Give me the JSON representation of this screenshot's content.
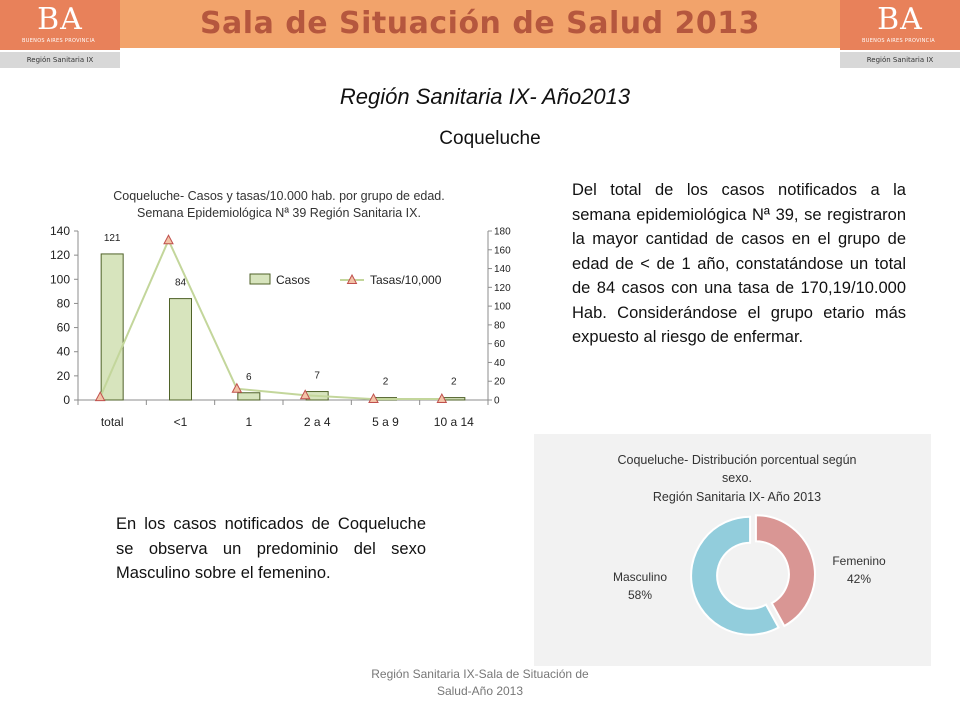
{
  "header": {
    "title": "Sala de Situación de Salud 2013",
    "logo_text": "BA",
    "logo_subtext": "BUENOS AIRES PROVINCIA",
    "logo_region": "Región Sanitaria IX"
  },
  "subtitle": "Región Sanitaria IX- Año2013",
  "topic": "Coqueluche",
  "paragraph1": "Del total de los casos notificados a la semana epidemiológica Nª 39, se registraron la mayor cantidad de casos en el grupo de edad de < de 1 año, constatándose un total de 84 casos con una tasa de 170,19/10.000 Hab. Considerándose el grupo etario más expuesto al riesgo de enfermar.",
  "paragraph2": "En los casos notificados de Coqueluche se observa un predominio del sexo Masculino sobre el femenino.",
  "footer": {
    "line1": "Región Sanitaria IX-Sala de Situación de",
    "line2": "Salud-Año 2013"
  },
  "colors": {
    "header_band": "#f2a36b",
    "logo_bg": "#e8815a",
    "title_text": "#b5573e",
    "bar_fill": "#d7e4bd",
    "bar_stroke": "#4f6228",
    "line_color": "#c3d69b",
    "marker_fill": "#f2c3a7",
    "marker_stroke": "#c0504d",
    "pie_femenino": "#d99694",
    "pie_masculino": "#92cddc"
  },
  "chart_data": [
    {
      "type": "bar",
      "title_lines": [
        "Coqueluche- Casos y tasas/10.000 hab. por grupo de edad.",
        "Semana Epidemiológica Nª 39 Región Sanitaria IX."
      ],
      "categories": [
        "total",
        "<1",
        "1",
        "2 a 4",
        "5 a 9",
        "10 a 14"
      ],
      "series": [
        {
          "name": "Casos",
          "type": "bar",
          "axis": "left",
          "values": [
            121,
            84,
            6,
            7,
            2,
            2
          ],
          "labels": [
            "121",
            "84",
            "6",
            "7",
            "2",
            "2"
          ]
        },
        {
          "name": "Tasas/10,000",
          "type": "line",
          "axis": "right",
          "values": [
            3,
            170.19,
            12,
            5,
            1,
            1
          ]
        }
      ],
      "y_left": {
        "min": 0,
        "max": 140,
        "ticks": [
          0,
          20,
          40,
          60,
          80,
          100,
          120,
          140
        ]
      },
      "y_right": {
        "min": 0,
        "max": 180,
        "ticks": [
          0,
          20,
          40,
          60,
          80,
          100,
          120,
          140,
          160,
          180
        ]
      },
      "grid": false,
      "legend_position": "top-right"
    },
    {
      "type": "pie",
      "style": "doughnut",
      "title_lines": [
        "Coqueluche- Distribución porcentual según",
        "sexo.",
        "Región Sanitaria IX- Año 2013"
      ],
      "slices": [
        {
          "name": "Femenino",
          "value": 42,
          "label": "42%"
        },
        {
          "name": "Masculino",
          "value": 58,
          "label": "58%"
        }
      ]
    }
  ]
}
